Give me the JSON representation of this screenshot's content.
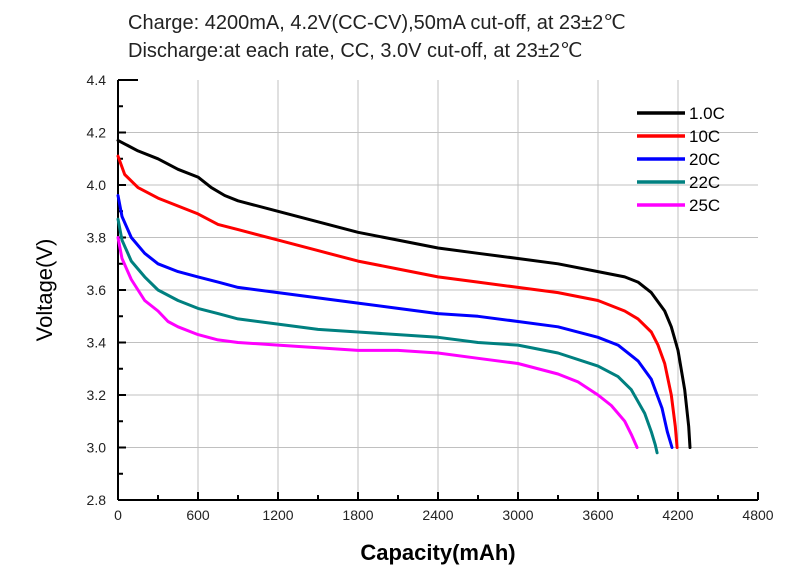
{
  "chart_data": {
    "type": "line",
    "title_lines": [
      "Charge: 4200mA, 4.2V(CC-CV),50mA cut-off, at 23±2℃",
      "Discharge:at each rate, CC, 3.0V cut-off, at 23±2℃"
    ],
    "xlabel": "Capacity(mAh)",
    "ylabel": "Voltage(V)",
    "xlim": [
      0,
      4800
    ],
    "ylim": [
      2.8,
      4.4
    ],
    "xticks": [
      0,
      600,
      1200,
      1800,
      2400,
      3000,
      3600,
      4200,
      4800
    ],
    "yticks": [
      "2.8",
      "3.0",
      "3.2",
      "3.4",
      "3.6",
      "3.8",
      "4.0",
      "4.2",
      "4.4"
    ],
    "grid": true,
    "legend_position": "top-right",
    "series": [
      {
        "name": "1.0C",
        "color": "#000000",
        "x": [
          0,
          150,
          300,
          450,
          600,
          700,
          800,
          900,
          1200,
          1500,
          1800,
          2100,
          2400,
          2700,
          3000,
          3300,
          3600,
          3800,
          3900,
          4000,
          4100,
          4150,
          4200,
          4250,
          4280,
          4290
        ],
        "y": [
          4.17,
          4.13,
          4.1,
          4.06,
          4.03,
          3.99,
          3.96,
          3.94,
          3.9,
          3.86,
          3.82,
          3.79,
          3.76,
          3.74,
          3.72,
          3.7,
          3.67,
          3.65,
          3.63,
          3.59,
          3.52,
          3.46,
          3.37,
          3.22,
          3.08,
          3.0
        ]
      },
      {
        "name": "10C",
        "color": "#ff0000",
        "x": [
          0,
          50,
          150,
          300,
          450,
          600,
          750,
          900,
          1200,
          1500,
          1800,
          2100,
          2400,
          2700,
          3000,
          3300,
          3600,
          3800,
          3900,
          4000,
          4050,
          4100,
          4150,
          4180,
          4193
        ],
        "y": [
          4.11,
          4.04,
          3.99,
          3.95,
          3.92,
          3.89,
          3.85,
          3.83,
          3.79,
          3.75,
          3.71,
          3.68,
          3.65,
          3.63,
          3.61,
          3.59,
          3.56,
          3.52,
          3.49,
          3.44,
          3.39,
          3.32,
          3.2,
          3.08,
          3.0
        ]
      },
      {
        "name": "20C",
        "color": "#0000ff",
        "x": [
          0,
          30,
          100,
          200,
          300,
          450,
          600,
          750,
          900,
          1200,
          1500,
          1800,
          2100,
          2400,
          2700,
          3000,
          3300,
          3600,
          3750,
          3900,
          4000,
          4080,
          4120,
          4155
        ],
        "y": [
          3.96,
          3.88,
          3.8,
          3.74,
          3.7,
          3.67,
          3.65,
          3.63,
          3.61,
          3.59,
          3.57,
          3.55,
          3.53,
          3.51,
          3.5,
          3.48,
          3.46,
          3.42,
          3.39,
          3.33,
          3.26,
          3.15,
          3.06,
          3.0
        ]
      },
      {
        "name": "22C",
        "color": "#008080",
        "x": [
          0,
          30,
          100,
          200,
          300,
          450,
          600,
          750,
          900,
          1200,
          1500,
          1800,
          2100,
          2400,
          2700,
          3000,
          3300,
          3600,
          3750,
          3850,
          3950,
          4000,
          4030,
          4043
        ],
        "y": [
          3.87,
          3.79,
          3.71,
          3.65,
          3.6,
          3.56,
          3.53,
          3.51,
          3.49,
          3.47,
          3.45,
          3.44,
          3.43,
          3.42,
          3.4,
          3.39,
          3.36,
          3.31,
          3.27,
          3.22,
          3.13,
          3.06,
          3.01,
          2.98
        ]
      },
      {
        "name": "25C",
        "color": "#ff00ff",
        "x": [
          0,
          30,
          100,
          200,
          300,
          375,
          450,
          600,
          750,
          900,
          1200,
          1500,
          1800,
          2100,
          2400,
          2700,
          3000,
          3300,
          3450,
          3600,
          3700,
          3800,
          3850,
          3893
        ],
        "y": [
          3.8,
          3.72,
          3.64,
          3.56,
          3.52,
          3.48,
          3.46,
          3.43,
          3.41,
          3.4,
          3.39,
          3.38,
          3.37,
          3.37,
          3.36,
          3.34,
          3.32,
          3.28,
          3.25,
          3.2,
          3.16,
          3.1,
          3.05,
          3.0
        ]
      }
    ]
  }
}
